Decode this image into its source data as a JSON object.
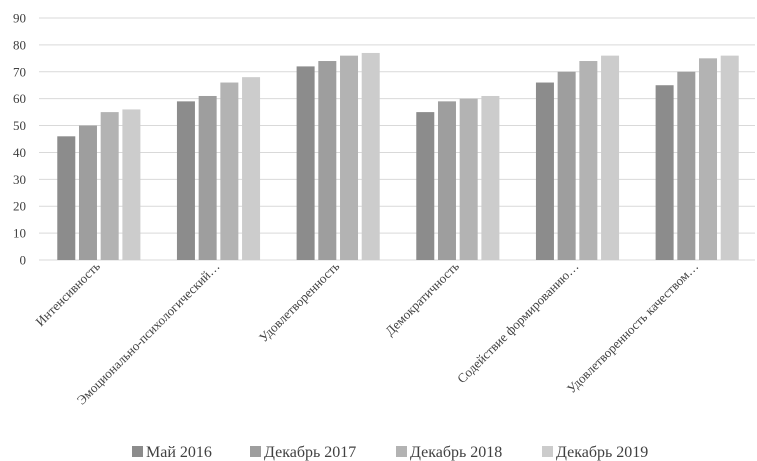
{
  "chart_data": {
    "type": "bar",
    "categories": [
      "Интенсивность",
      "Эмоционально-психологический…",
      "Удовлетворенность",
      "Демократичность",
      "Содействие формированию…",
      "Удовлетворенность качеством…"
    ],
    "series": [
      {
        "name": "Май 2016",
        "color": "#8c8c8c",
        "values": [
          46,
          59,
          72,
          55,
          66,
          65
        ]
      },
      {
        "name": "Декабрь 2017",
        "color": "#9e9e9e",
        "values": [
          50,
          61,
          74,
          59,
          70,
          70
        ]
      },
      {
        "name": "Декабрь 2018",
        "color": "#b3b3b3",
        "values": [
          55,
          66,
          76,
          60,
          74,
          75
        ]
      },
      {
        "name": "Декабрь 2019",
        "color": "#cccccc",
        "values": [
          56,
          68,
          77,
          61,
          76,
          76
        ]
      }
    ],
    "ylim": [
      0,
      90
    ],
    "yticks": [
      0,
      10,
      20,
      30,
      40,
      50,
      60,
      70,
      80,
      90
    ],
    "grid": true,
    "legend_position": "bottom",
    "gridline_color": "#d9d9d9"
  }
}
